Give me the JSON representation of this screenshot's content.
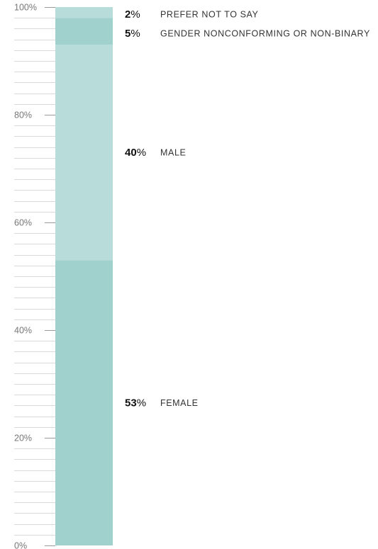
{
  "chart_data": {
    "type": "bar",
    "stacked": true,
    "ylim": [
      0,
      100
    ],
    "yticks": [
      {
        "value": 0,
        "label": "0%"
      },
      {
        "value": 20,
        "label": "20%"
      },
      {
        "value": 40,
        "label": "40%"
      },
      {
        "value": 60,
        "label": "60%"
      },
      {
        "value": 80,
        "label": "80%"
      },
      {
        "value": 100,
        "label": "100%"
      }
    ],
    "minor_tick_step": 2,
    "segments": [
      {
        "name": "FEMALE",
        "value": 53,
        "value_label": "53",
        "color": "#a0d1cc"
      },
      {
        "name": "MALE",
        "value": 40,
        "value_label": "40",
        "color": "#b7dcda"
      },
      {
        "name": "GENDER NONCONFORMING OR NON-BINARY",
        "value": 5,
        "value_label": "5",
        "color": "#a0d1cc"
      },
      {
        "name": "PREFER NOT TO SAY",
        "value": 2,
        "value_label": "2",
        "color": "#b7dcda"
      }
    ],
    "percent_sign": "%"
  }
}
